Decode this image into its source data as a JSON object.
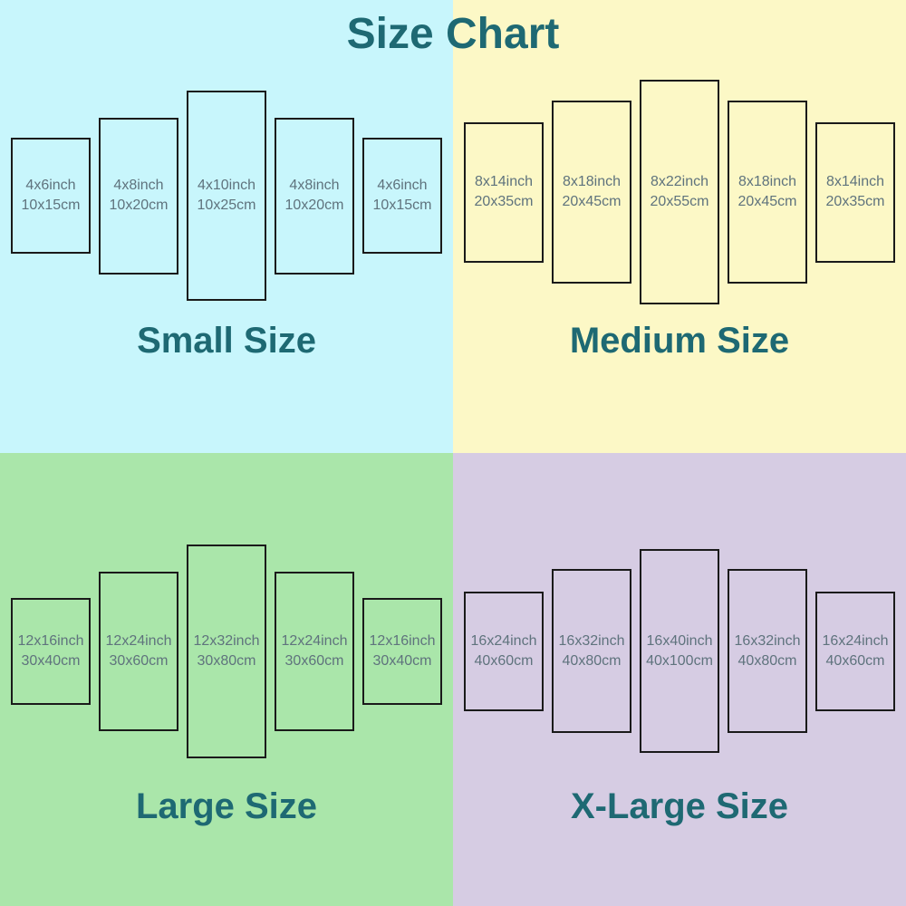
{
  "title": "Size Chart",
  "colors": {
    "small_bg": "#c8f6fc",
    "medium_bg": "#fcf8c6",
    "large_bg": "#aae6aa",
    "xlarge_bg": "#d6cce3",
    "heading_text": "#1e6973",
    "panel_text": "#5f737d",
    "panel_border": "#1a1a1a"
  },
  "quadrants": [
    {
      "label": "Small Size",
      "panels": [
        {
          "inch": "4x6inch",
          "cm": "10x15cm"
        },
        {
          "inch": "4x8inch",
          "cm": "10x20cm"
        },
        {
          "inch": "4x10inch",
          "cm": "10x25cm"
        },
        {
          "inch": "4x8inch",
          "cm": "10x20cm"
        },
        {
          "inch": "4x6inch",
          "cm": "10x15cm"
        }
      ]
    },
    {
      "label": "Medium Size",
      "panels": [
        {
          "inch": "8x14inch",
          "cm": "20x35cm"
        },
        {
          "inch": "8x18inch",
          "cm": "20x45cm"
        },
        {
          "inch": "8x22inch",
          "cm": "20x55cm"
        },
        {
          "inch": "8x18inch",
          "cm": "20x45cm"
        },
        {
          "inch": "8x14inch",
          "cm": "20x35cm"
        }
      ]
    },
    {
      "label": "Large Size",
      "panels": [
        {
          "inch": "12x16inch",
          "cm": "30x40cm"
        },
        {
          "inch": "12x24inch",
          "cm": "30x60cm"
        },
        {
          "inch": "12x32inch",
          "cm": "30x80cm"
        },
        {
          "inch": "12x24inch",
          "cm": "30x60cm"
        },
        {
          "inch": "12x16inch",
          "cm": "30x40cm"
        }
      ]
    },
    {
      "label": "X-Large Size",
      "panels": [
        {
          "inch": "16x24inch",
          "cm": "40x60cm"
        },
        {
          "inch": "16x32inch",
          "cm": "40x80cm"
        },
        {
          "inch": "16x40inch",
          "cm": "40x100cm"
        },
        {
          "inch": "16x32inch",
          "cm": "40x80cm"
        },
        {
          "inch": "16x24inch",
          "cm": "40x60cm"
        }
      ]
    }
  ]
}
